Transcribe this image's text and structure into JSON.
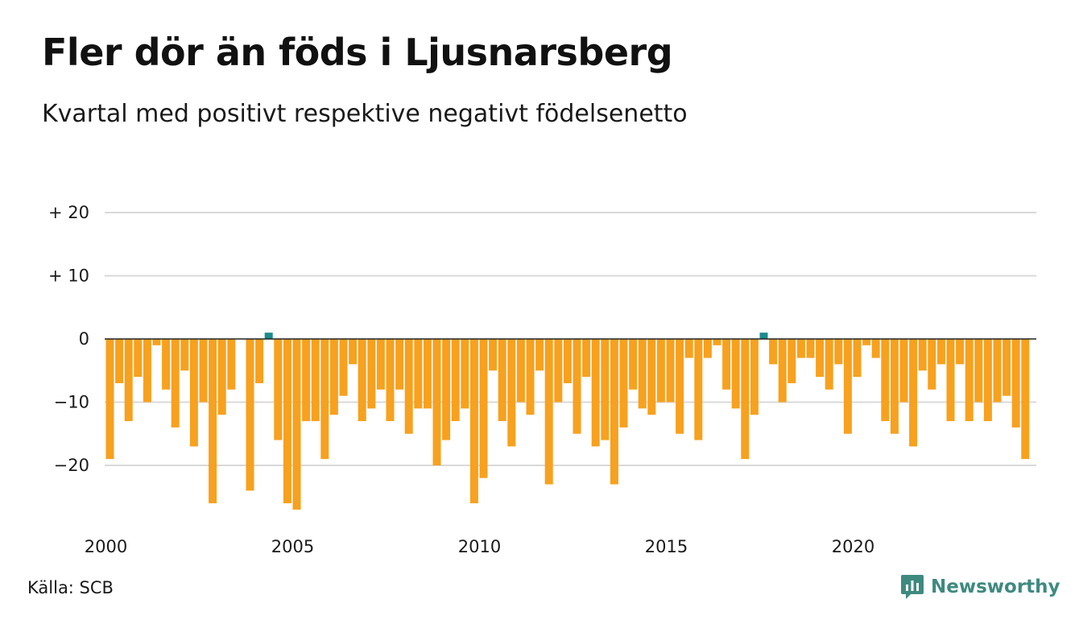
{
  "header": {
    "title": "Fler dör än föds i Ljusnarsberg",
    "subtitle": "Kvartal med positivt respektive negativt födelsenetto"
  },
  "footer": {
    "source": "Källa: SCB",
    "brand_name": "Newsworthy",
    "brand_icon": "newsworthy-logo-icon"
  },
  "colors": {
    "negative": "#F7A11E",
    "positive": "#1A8C8B",
    "grid": "#D9D9D9",
    "zero_line": "#222222",
    "brand": "#3E8A80"
  },
  "chart_data": {
    "type": "bar",
    "title": "Fler dör än föds i Ljusnarsberg",
    "subtitle": "Kvartal med positivt respektive negativt födelsenetto",
    "xlabel": "",
    "ylabel": "",
    "ylim": [
      -28,
      20
    ],
    "y_ticks": [
      {
        "value": 20,
        "label": "+ 20"
      },
      {
        "value": 10,
        "label": "+ 10"
      },
      {
        "value": 0,
        "label": "0"
      },
      {
        "value": -10,
        "label": "−10"
      },
      {
        "value": -20,
        "label": "−20"
      }
    ],
    "x_ticks": [
      {
        "value": 2000,
        "label": "2000"
      },
      {
        "value": 2005,
        "label": "2005"
      },
      {
        "value": 2010,
        "label": "2010"
      },
      {
        "value": 2015,
        "label": "2015"
      },
      {
        "value": 2020,
        "label": "2020"
      }
    ],
    "grid": true,
    "start_year": 2000,
    "periods_per_year": 4,
    "values": [
      -19,
      -7,
      -13,
      -6,
      -10,
      -1,
      -8,
      -14,
      -5,
      -17,
      -10,
      -26,
      -12,
      -8,
      0,
      -24,
      -7,
      1,
      -16,
      -26,
      -27,
      -13,
      -13,
      -19,
      -12,
      -9,
      -4,
      -13,
      -11,
      -8,
      -13,
      -8,
      -15,
      -11,
      -11,
      -20,
      -16,
      -13,
      -11,
      -26,
      -22,
      -5,
      -13,
      -17,
      -10,
      -12,
      -5,
      -23,
      -10,
      -7,
      -15,
      -6,
      -17,
      -16,
      -23,
      -14,
      -8,
      -11,
      -12,
      -10,
      -10,
      -15,
      -3,
      -16,
      -3,
      -1,
      -8,
      -11,
      -19,
      -12,
      1,
      -4,
      -10,
      -7,
      -3,
      -3,
      -6,
      -8,
      -4,
      -15,
      -6,
      -1,
      -3,
      -13,
      -15,
      -10,
      -17,
      -5,
      -8,
      -4,
      -13,
      -4,
      -13,
      -10,
      -13,
      -10,
      -9,
      -14,
      -19
    ]
  }
}
